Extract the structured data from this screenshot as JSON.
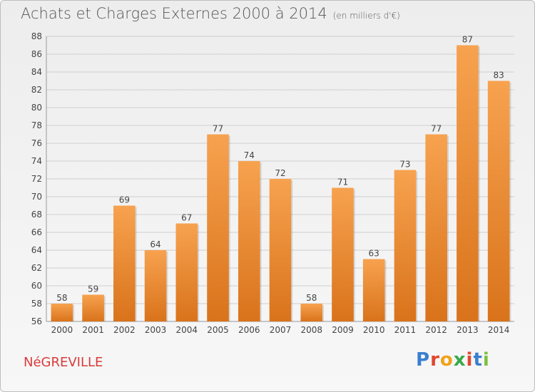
{
  "header": {
    "title": "Achats et Charges Externes 2000 à 2014",
    "subtitle": "(en milliers d'€)"
  },
  "footer": {
    "commune": "NéGREVILLE",
    "logo_text": "Proxiti"
  },
  "colors": {
    "bar_top": "#f7a24f",
    "bar_bottom": "#d9731b",
    "grid": "#cfcfcf"
  },
  "chart_data": {
    "type": "bar",
    "title": "Achats et Charges Externes 2000 à 2014",
    "subtitle": "(en milliers d'€)",
    "xlabel": "",
    "ylabel": "",
    "categories": [
      "2000",
      "2001",
      "2002",
      "2003",
      "2004",
      "2005",
      "2006",
      "2007",
      "2008",
      "2009",
      "2010",
      "2011",
      "2012",
      "2013",
      "2014"
    ],
    "values": [
      58,
      59,
      69,
      64,
      67,
      77,
      74,
      72,
      58,
      71,
      63,
      73,
      77,
      87,
      83
    ],
    "ylim": [
      56,
      88
    ],
    "yticks": [
      56,
      58,
      60,
      62,
      64,
      66,
      68,
      70,
      72,
      74,
      76,
      78,
      80,
      82,
      84,
      86,
      88
    ],
    "grid": true,
    "data_labels": true
  }
}
